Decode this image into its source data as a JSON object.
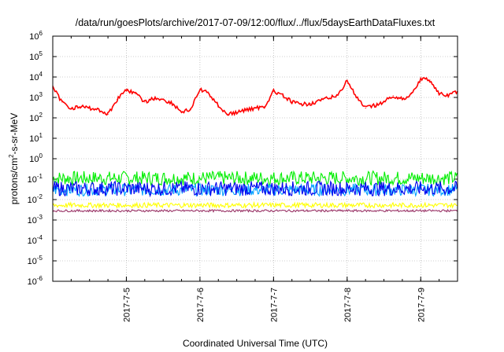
{
  "chart_data": {
    "type": "line",
    "title": "/data/run/goesPlots/archive/2017-07-09/12:00/flux/../flux/5daysEarthDataFluxes.txt",
    "xlabel": "Coordinated Universal Time (UTC)",
    "ylabel": "protons/cm2-s-sr-MeV",
    "ylabel_parts": {
      "pre": "protons/cm",
      "sup": "2",
      "post": "-s-sr-MeV"
    },
    "y_scale": "log",
    "ylim": [
      1e-06,
      1000000.0
    ],
    "y_ticks": [
      {
        "value": 1e-06,
        "base": "10",
        "exp": "-6"
      },
      {
        "value": 1e-05,
        "base": "10",
        "exp": "-5"
      },
      {
        "value": 0.0001,
        "base": "10",
        "exp": "-4"
      },
      {
        "value": 0.001,
        "base": "10",
        "exp": "-3"
      },
      {
        "value": 0.01,
        "base": "10",
        "exp": "-2"
      },
      {
        "value": 0.1,
        "base": "10",
        "exp": "-1"
      },
      {
        "value": 1,
        "base": "10",
        "exp": "0"
      },
      {
        "value": 10,
        "base": "10",
        "exp": "1"
      },
      {
        "value": 100,
        "base": "10",
        "exp": "2"
      },
      {
        "value": 1000,
        "base": "10",
        "exp": "3"
      },
      {
        "value": 10000,
        "base": "10",
        "exp": "4"
      },
      {
        "value": 100000,
        "base": "10",
        "exp": "5"
      },
      {
        "value": 1000000,
        "base": "10",
        "exp": "6"
      }
    ],
    "xlim": [
      "2017-07-04 00:00",
      "2017-07-09 12:00"
    ],
    "x_ticks": [
      {
        "value": "2017-07-05 00:00",
        "label": "2017-7-5"
      },
      {
        "value": "2017-07-06 00:00",
        "label": "2017-7-6"
      },
      {
        "value": "2017-07-07 00:00",
        "label": "2017-7-7"
      },
      {
        "value": "2017-07-08 00:00",
        "label": "2017-7-8"
      },
      {
        "value": "2017-07-09 00:00",
        "label": "2017-7-9"
      }
    ],
    "grid": true,
    "series": [
      {
        "color": "#ff0000",
        "x": [
          "2017-07-04 00:00",
          "2017-07-04 03:00",
          "2017-07-04 06:00",
          "2017-07-04 09:00",
          "2017-07-04 12:00",
          "2017-07-04 15:00",
          "2017-07-04 18:00",
          "2017-07-04 21:00",
          "2017-07-05 00:00",
          "2017-07-05 03:00",
          "2017-07-05 06:00",
          "2017-07-05 09:00",
          "2017-07-05 12:00",
          "2017-07-05 15:00",
          "2017-07-05 18:00",
          "2017-07-05 21:00",
          "2017-07-06 00:00",
          "2017-07-06 03:00",
          "2017-07-06 06:00",
          "2017-07-06 09:00",
          "2017-07-06 12:00",
          "2017-07-06 15:00",
          "2017-07-06 18:00",
          "2017-07-06 21:00",
          "2017-07-07 00:00",
          "2017-07-07 03:00",
          "2017-07-07 06:00",
          "2017-07-07 09:00",
          "2017-07-07 12:00",
          "2017-07-07 15:00",
          "2017-07-07 18:00",
          "2017-07-07 21:00",
          "2017-07-08 00:00",
          "2017-07-08 03:00",
          "2017-07-08 06:00",
          "2017-07-08 09:00",
          "2017-07-08 12:00",
          "2017-07-08 15:00",
          "2017-07-08 18:00",
          "2017-07-08 21:00",
          "2017-07-09 00:00",
          "2017-07-09 03:00",
          "2017-07-09 06:00",
          "2017-07-09 09:00",
          "2017-07-09 12:00"
        ],
        "y": [
          3000,
          600,
          300,
          350,
          300,
          250,
          150,
          800,
          2500,
          1500,
          600,
          900,
          800,
          500,
          200,
          250,
          2500,
          1500,
          400,
          150,
          180,
          250,
          300,
          350,
          2000,
          1200,
          600,
          450,
          500,
          700,
          900,
          1300,
          7000,
          1000,
          300,
          400,
          600,
          1200,
          800,
          1500,
          8000,
          7000,
          1500,
          1200,
          2000
        ]
      },
      {
        "color": "#00ee00",
        "band": [
          0.05,
          0.25
        ]
      },
      {
        "color": "#00a0ff",
        "band": [
          0.015,
          0.06
        ]
      },
      {
        "color": "#0000ee",
        "band": [
          0.015,
          0.08
        ]
      },
      {
        "color": "#ffff00",
        "band": [
          0.004,
          0.007
        ]
      },
      {
        "color": "#993366",
        "band": [
          0.0025,
          0.0032
        ]
      }
    ]
  }
}
